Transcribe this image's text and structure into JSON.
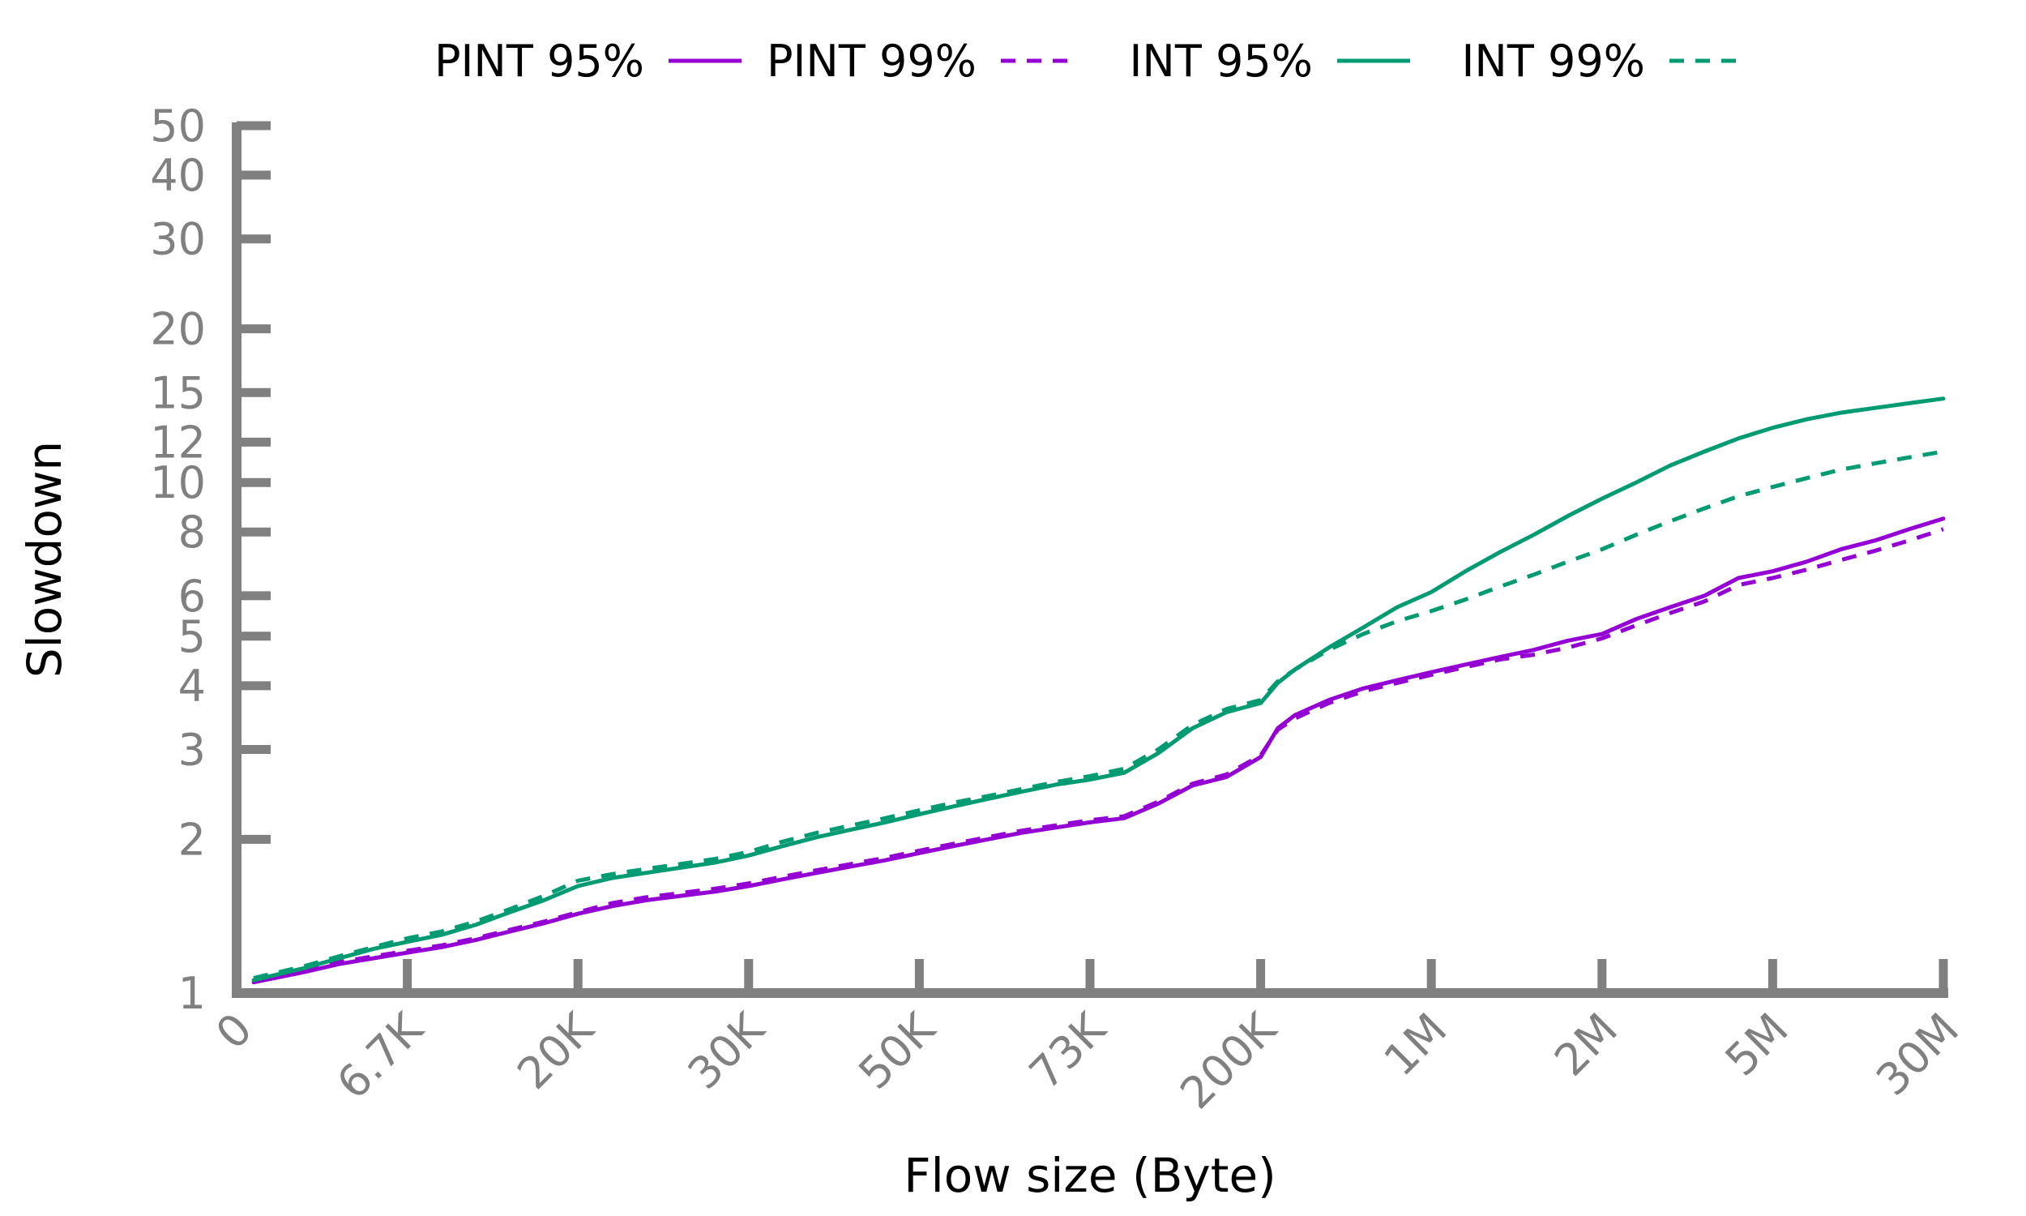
{
  "colors": {
    "pint": "#9400d3",
    "int": "#009b72",
    "axis": "#808080"
  },
  "chart_data": {
    "type": "line",
    "xlabel": "Flow size (Byte)",
    "ylabel": "Slowdown",
    "y_scale": "log",
    "ylim": [
      1,
      50
    ],
    "grid": false,
    "legend_position": "top",
    "categories": [
      "0",
      "6.7K",
      "20K",
      "30K",
      "50K",
      "73K",
      "200K",
      "1M",
      "2M",
      "5M",
      "30M"
    ],
    "y_ticks": [
      1,
      2,
      3,
      4,
      5,
      6,
      8,
      10,
      12,
      15,
      20,
      30,
      40,
      50
    ],
    "x": [
      0.1,
      0.4,
      0.6,
      0.8,
      1.0,
      1.2,
      1.4,
      1.6,
      1.8,
      2.0,
      2.2,
      2.4,
      2.6,
      2.8,
      3.0,
      3.2,
      3.4,
      3.6,
      3.8,
      4.0,
      4.2,
      4.4,
      4.6,
      4.8,
      5.0,
      5.2,
      5.4,
      5.6,
      5.8,
      6.0,
      6.1,
      6.2,
      6.4,
      6.6,
      6.8,
      7.0,
      7.2,
      7.4,
      7.6,
      7.8,
      8.0,
      8.2,
      8.4,
      8.6,
      8.8,
      9.0,
      9.2,
      9.4,
      9.6,
      9.8,
      10.0
    ],
    "series": [
      {
        "name": "PINT 95%",
        "style": "solid",
        "color": "#9400d3",
        "values": [
          1.05,
          1.1,
          1.14,
          1.17,
          1.2,
          1.23,
          1.27,
          1.32,
          1.37,
          1.43,
          1.48,
          1.52,
          1.55,
          1.58,
          1.62,
          1.67,
          1.72,
          1.77,
          1.82,
          1.88,
          1.94,
          2.0,
          2.06,
          2.11,
          2.16,
          2.2,
          2.35,
          2.55,
          2.65,
          2.9,
          3.3,
          3.5,
          3.75,
          3.95,
          4.1,
          4.25,
          4.4,
          4.55,
          4.7,
          4.9,
          5.05,
          5.4,
          5.7,
          6.0,
          6.5,
          6.7,
          7.0,
          7.4,
          7.7,
          8.1,
          8.5
        ]
      },
      {
        "name": "PINT 99%",
        "style": "dashed",
        "color": "#9400d3",
        "values": [
          1.06,
          1.11,
          1.15,
          1.18,
          1.21,
          1.24,
          1.28,
          1.33,
          1.38,
          1.44,
          1.5,
          1.54,
          1.57,
          1.6,
          1.64,
          1.69,
          1.74,
          1.79,
          1.84,
          1.9,
          1.96,
          2.02,
          2.08,
          2.13,
          2.18,
          2.22,
          2.37,
          2.57,
          2.68,
          2.92,
          3.28,
          3.45,
          3.7,
          3.9,
          4.05,
          4.2,
          4.35,
          4.5,
          4.6,
          4.75,
          4.95,
          5.25,
          5.55,
          5.85,
          6.3,
          6.5,
          6.75,
          7.05,
          7.35,
          7.7,
          8.1
        ]
      },
      {
        "name": "INT 95%",
        "style": "solid",
        "color": "#009b72",
        "values": [
          1.06,
          1.12,
          1.17,
          1.22,
          1.26,
          1.3,
          1.36,
          1.44,
          1.52,
          1.62,
          1.68,
          1.72,
          1.76,
          1.8,
          1.86,
          1.94,
          2.02,
          2.09,
          2.16,
          2.24,
          2.32,
          2.4,
          2.48,
          2.56,
          2.62,
          2.7,
          2.95,
          3.3,
          3.55,
          3.7,
          4.05,
          4.3,
          4.75,
          5.2,
          5.7,
          6.1,
          6.7,
          7.3,
          7.9,
          8.6,
          9.3,
          10.0,
          10.8,
          11.5,
          12.2,
          12.8,
          13.3,
          13.7,
          14.0,
          14.3,
          14.6
        ]
      },
      {
        "name": "INT 99%",
        "style": "dashed",
        "color": "#009b72",
        "values": [
          1.07,
          1.13,
          1.18,
          1.23,
          1.28,
          1.32,
          1.38,
          1.46,
          1.55,
          1.66,
          1.71,
          1.75,
          1.79,
          1.83,
          1.89,
          1.98,
          2.06,
          2.13,
          2.2,
          2.28,
          2.36,
          2.43,
          2.51,
          2.59,
          2.66,
          2.75,
          3.0,
          3.35,
          3.6,
          3.75,
          4.08,
          4.3,
          4.7,
          5.05,
          5.35,
          5.6,
          5.9,
          6.25,
          6.6,
          7.0,
          7.4,
          7.9,
          8.4,
          8.9,
          9.4,
          9.8,
          10.2,
          10.6,
          10.9,
          11.2,
          11.5
        ]
      }
    ]
  }
}
